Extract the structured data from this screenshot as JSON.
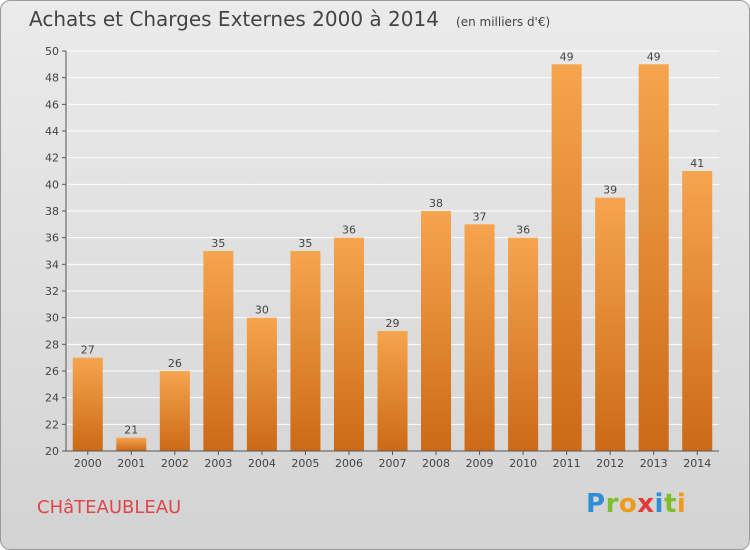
{
  "chart_data": {
    "type": "bar",
    "title": "Achats et Charges Externes 2000 à 2014",
    "subtitle": "(en milliers d'€)",
    "categories": [
      "2000",
      "2001",
      "2002",
      "2003",
      "2004",
      "2005",
      "2006",
      "2007",
      "2008",
      "2009",
      "2010",
      "2011",
      "2012",
      "2013",
      "2014"
    ],
    "values": [
      27,
      21,
      26,
      35,
      30,
      35,
      36,
      29,
      38,
      37,
      36,
      49,
      39,
      49,
      41
    ],
    "ylim": [
      20,
      50
    ],
    "yticks": [
      20,
      22,
      24,
      26,
      28,
      30,
      32,
      34,
      36,
      38,
      40,
      42,
      44,
      46,
      48,
      50
    ],
    "grid": true,
    "xlabel": "",
    "ylabel": "",
    "colors": {
      "bar_light": "#f6a44e",
      "bar_dark": "#cc6a16",
      "grid": "#ffffff"
    }
  },
  "footer": {
    "commune": "CHâTEAUBLEAU",
    "logo_letters": [
      {
        "ch": "P",
        "color": "#2e8fd6"
      },
      {
        "ch": "r",
        "color": "#7cbf2a"
      },
      {
        "ch": "o",
        "color": "#f09a1a"
      },
      {
        "ch": "x",
        "color": "#e23b3b"
      },
      {
        "ch": "i",
        "color": "#2e8fd6"
      },
      {
        "ch": "t",
        "color": "#7cbf2a"
      },
      {
        "ch": "i",
        "color": "#f09a1a"
      }
    ]
  }
}
